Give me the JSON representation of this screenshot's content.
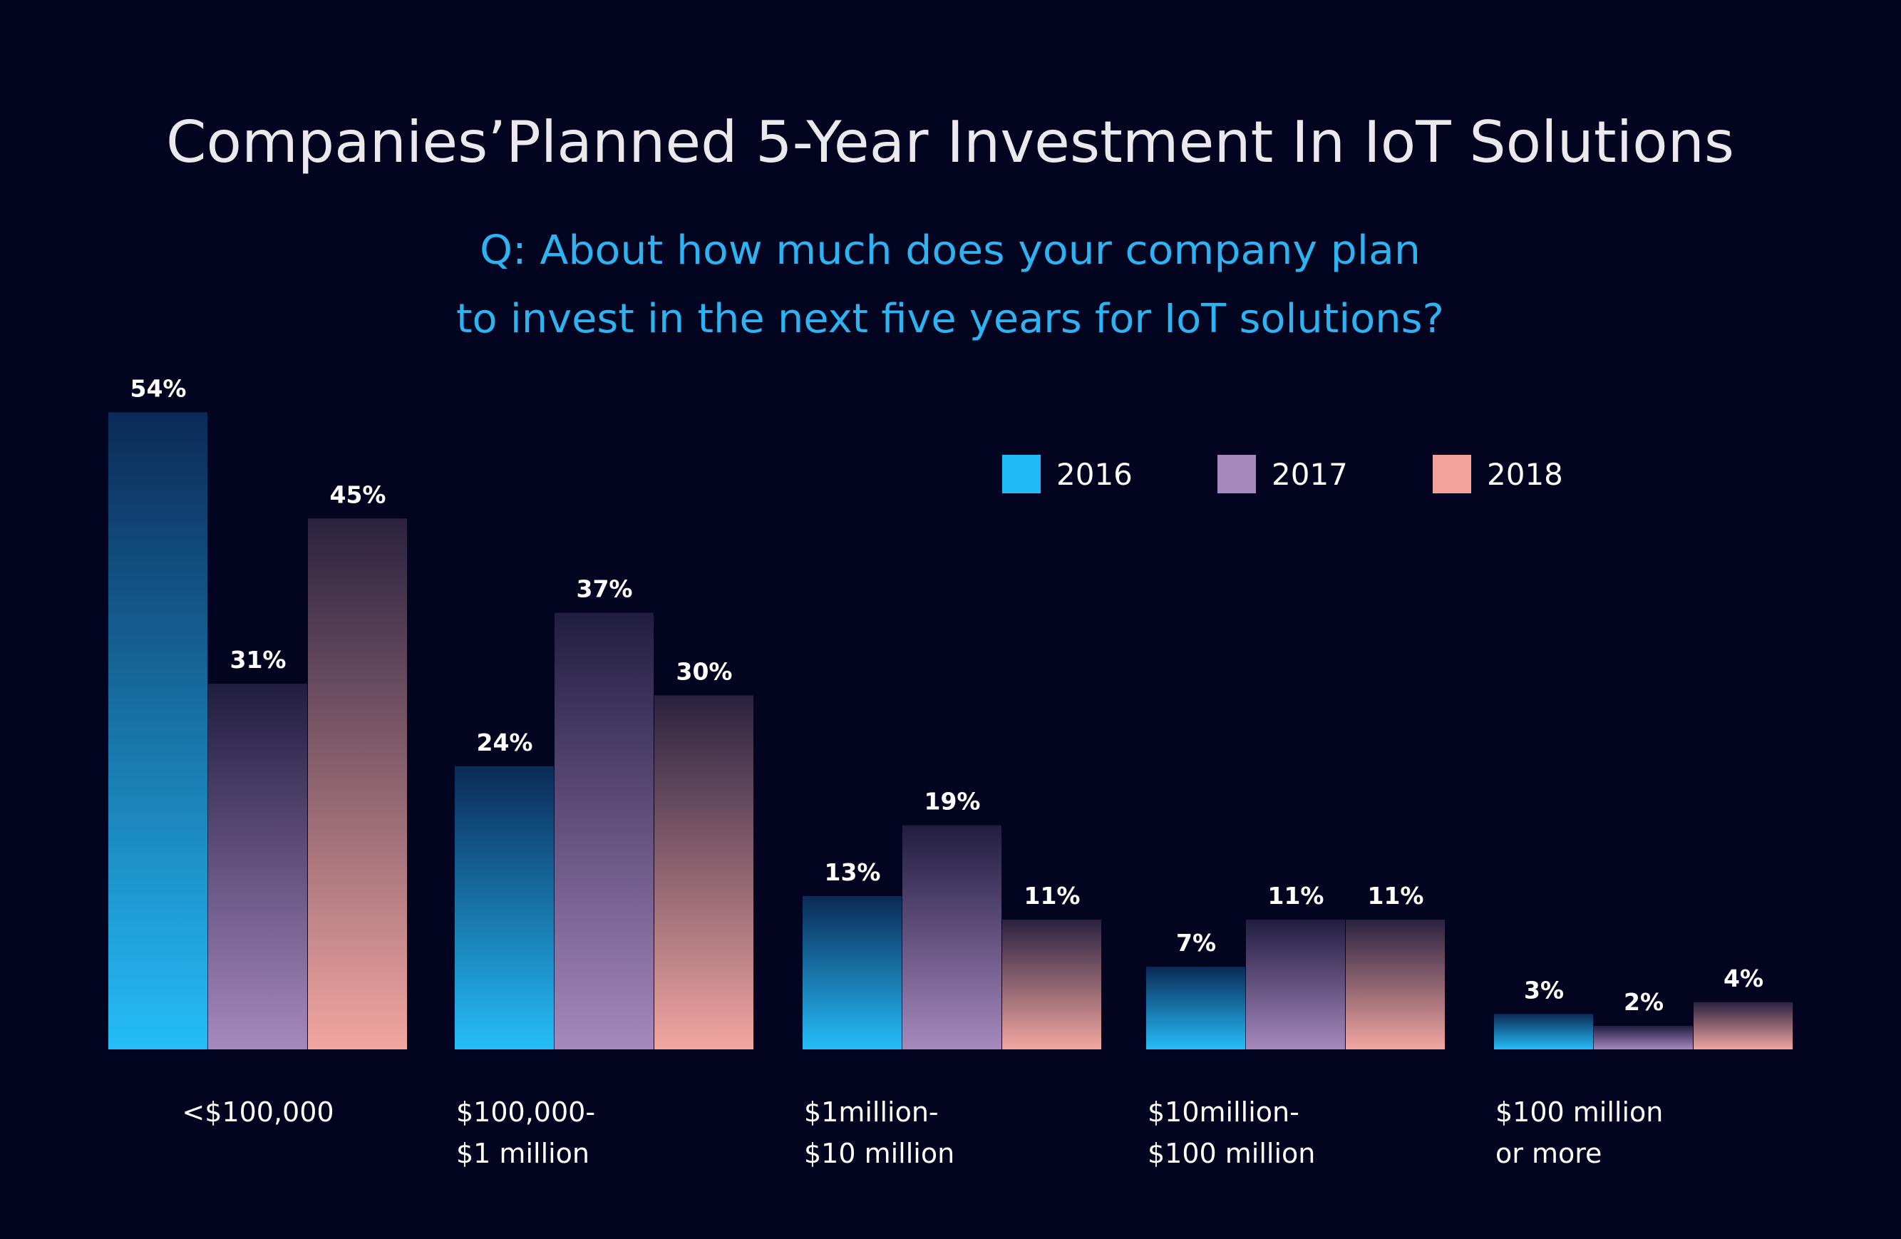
{
  "chart_data": {
    "type": "bar",
    "title": "Companies’Planned 5-Year Investment In IoT Solutions",
    "subtitle": [
      "Q: About how much does your company plan",
      "to invest in the next five years for IoT solutions?"
    ],
    "categories": [
      [
        "<$100,000"
      ],
      [
        "$100,000-",
        "$1 million"
      ],
      [
        "$1million-",
        "$10 million"
      ],
      [
        "$10million-",
        "$100 million"
      ],
      [
        "$100 million",
        "or more"
      ]
    ],
    "series": [
      {
        "name": "2016",
        "values": [
          54,
          24,
          13,
          7,
          3
        ],
        "labels": [
          "54%",
          "24%",
          "13%",
          "7%",
          "3%"
        ]
      },
      {
        "name": "2017",
        "values": [
          31,
          37,
          19,
          11,
          2
        ],
        "labels": [
          "31%",
          "37%",
          "19%",
          "11%",
          "2%"
        ]
      },
      {
        "name": "2018",
        "values": [
          45,
          30,
          11,
          11,
          4
        ],
        "labels": [
          "45%",
          "30%",
          "11%",
          "11%",
          "4%"
        ]
      }
    ],
    "ylim": [
      0,
      54
    ],
    "legend": "top-right",
    "colors": {
      "2016": {
        "top": "#0b2a57",
        "bottom": "#25bdf8",
        "legend": "#1fbcf8"
      },
      "2017": {
        "top": "#211d40",
        "bottom": "#a688bd",
        "legend": "#a688bd"
      },
      "2018": {
        "top": "#2a2240",
        "bottom": "#f2a6a0",
        "legend": "#f2a39b"
      }
    }
  }
}
